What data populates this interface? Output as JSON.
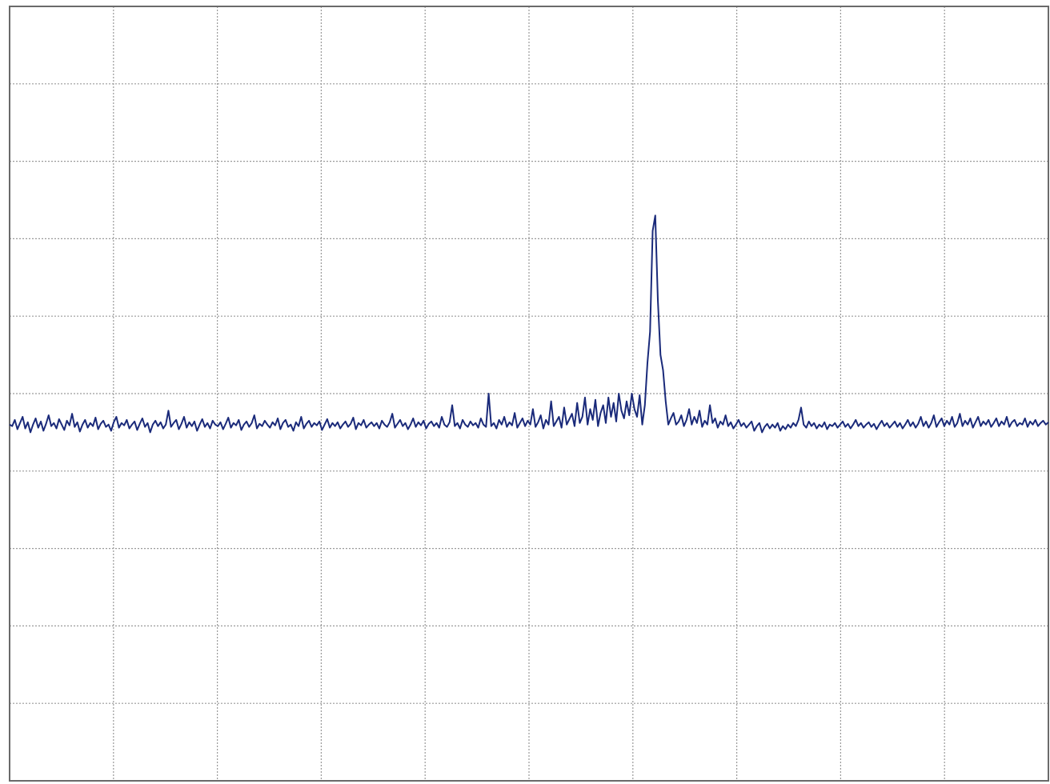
{
  "chart_data": {
    "type": "line",
    "title": "",
    "xlabel": "",
    "ylabel": "",
    "grid": true,
    "grid_divisions": {
      "x": 10,
      "y": 10
    },
    "xlim": [
      0,
      10
    ],
    "ylim": [
      0,
      10
    ],
    "colors": {
      "trace": "#1a2a7a",
      "grid": "#9a9a9a",
      "frame": "#6a6a6a",
      "background": "#ffffff"
    },
    "series": [
      {
        "values": [
          4.6,
          4.58,
          4.66,
          4.54,
          4.62,
          4.7,
          4.55,
          4.63,
          4.5,
          4.6,
          4.68,
          4.56,
          4.64,
          4.52,
          4.61,
          4.72,
          4.58,
          4.62,
          4.55,
          4.67,
          4.6,
          4.53,
          4.65,
          4.59,
          4.74,
          4.57,
          4.63,
          4.51,
          4.6,
          4.66,
          4.56,
          4.62,
          4.58,
          4.69,
          4.54,
          4.61,
          4.65,
          4.57,
          4.6,
          4.52,
          4.63,
          4.7,
          4.56,
          4.62,
          4.59,
          4.66,
          4.55,
          4.6,
          4.64,
          4.53,
          4.61,
          4.68,
          4.57,
          4.62,
          4.5,
          4.6,
          4.65,
          4.58,
          4.63,
          4.55,
          4.6,
          4.78,
          4.57,
          4.62,
          4.66,
          4.54,
          4.61,
          4.7,
          4.56,
          4.63,
          4.58,
          4.64,
          4.52,
          4.6,
          4.67,
          4.57,
          4.62,
          4.55,
          4.65,
          4.6,
          4.58,
          4.63,
          4.54,
          4.61,
          4.69,
          4.56,
          4.62,
          4.59,
          4.66,
          4.53,
          4.6,
          4.64,
          4.57,
          4.62,
          4.72,
          4.55,
          4.61,
          4.58,
          4.65,
          4.6,
          4.56,
          4.63,
          4.59,
          4.68,
          4.54,
          4.62,
          4.66,
          4.57,
          4.6,
          4.52,
          4.63,
          4.58,
          4.7,
          4.55,
          4.61,
          4.65,
          4.57,
          4.62,
          4.59,
          4.64,
          4.53,
          4.6,
          4.67,
          4.56,
          4.62,
          4.58,
          4.63,
          4.55,
          4.6,
          4.64,
          4.57,
          4.61,
          4.69,
          4.54,
          4.62,
          4.59,
          4.66,
          4.56,
          4.6,
          4.63,
          4.58,
          4.62,
          4.55,
          4.65,
          4.6,
          4.57,
          4.63,
          4.74,
          4.56,
          4.61,
          4.66,
          4.58,
          4.62,
          4.54,
          4.6,
          4.68,
          4.57,
          4.63,
          4.59,
          4.65,
          4.55,
          4.61,
          4.64,
          4.58,
          4.62,
          4.56,
          4.7,
          4.6,
          4.57,
          4.63,
          4.85,
          4.58,
          4.62,
          4.55,
          4.66,
          4.6,
          4.57,
          4.64,
          4.59,
          4.62,
          4.56,
          4.68,
          4.6,
          4.57,
          5.0,
          4.58,
          4.62,
          4.55,
          4.66,
          4.6,
          4.7,
          4.57,
          4.63,
          4.59,
          4.75,
          4.56,
          4.62,
          4.68,
          4.58,
          4.65,
          4.6,
          4.8,
          4.57,
          4.63,
          4.72,
          4.55,
          4.66,
          4.6,
          4.9,
          4.58,
          4.64,
          4.7,
          4.56,
          4.82,
          4.6,
          4.67,
          4.74,
          4.58,
          4.88,
          4.62,
          4.7,
          4.95,
          4.6,
          4.8,
          4.66,
          4.92,
          4.58,
          4.75,
          4.85,
          4.62,
          4.95,
          4.7,
          4.88,
          4.64,
          5.0,
          4.78,
          4.68,
          4.9,
          4.72,
          5.0,
          4.8,
          4.7,
          4.98,
          4.6,
          4.85,
          5.4,
          5.8,
          7.1,
          7.3,
          6.2,
          5.5,
          5.3,
          4.9,
          4.6,
          4.68,
          4.75,
          4.6,
          4.64,
          4.72,
          4.58,
          4.66,
          4.8,
          4.6,
          4.7,
          4.62,
          4.78,
          4.57,
          4.65,
          4.6,
          4.85,
          4.62,
          4.68,
          4.56,
          4.64,
          4.6,
          4.72,
          4.58,
          4.63,
          4.55,
          4.6,
          4.66,
          4.58,
          4.62,
          4.56,
          4.6,
          4.64,
          4.52,
          4.58,
          4.62,
          4.5,
          4.57,
          4.61,
          4.55,
          4.6,
          4.56,
          4.62,
          4.52,
          4.58,
          4.54,
          4.6,
          4.56,
          4.62,
          4.58,
          4.66,
          4.82,
          4.6,
          4.56,
          4.64,
          4.58,
          4.62,
          4.55,
          4.6,
          4.57,
          4.63,
          4.54,
          4.6,
          4.58,
          4.62,
          4.56,
          4.6,
          4.64,
          4.57,
          4.61,
          4.55,
          4.6,
          4.66,
          4.58,
          4.62,
          4.56,
          4.6,
          4.63,
          4.57,
          4.61,
          4.54,
          4.6,
          4.65,
          4.58,
          4.62,
          4.56,
          4.6,
          4.64,
          4.57,
          4.62,
          4.55,
          4.6,
          4.66,
          4.58,
          4.63,
          4.56,
          4.61,
          4.7,
          4.58,
          4.64,
          4.56,
          4.62,
          4.72,
          4.57,
          4.63,
          4.68,
          4.58,
          4.65,
          4.6,
          4.7,
          4.57,
          4.62,
          4.74,
          4.58,
          4.65,
          4.6,
          4.68,
          4.56,
          4.63,
          4.7,
          4.58,
          4.64,
          4.6,
          4.66,
          4.57,
          4.62,
          4.68,
          4.58,
          4.64,
          4.6,
          4.7,
          4.57,
          4.63,
          4.66,
          4.58,
          4.62,
          4.6,
          4.68,
          4.57,
          4.64,
          4.6,
          4.66,
          4.58,
          4.62,
          4.65,
          4.6,
          4.63
        ]
      }
    ]
  }
}
